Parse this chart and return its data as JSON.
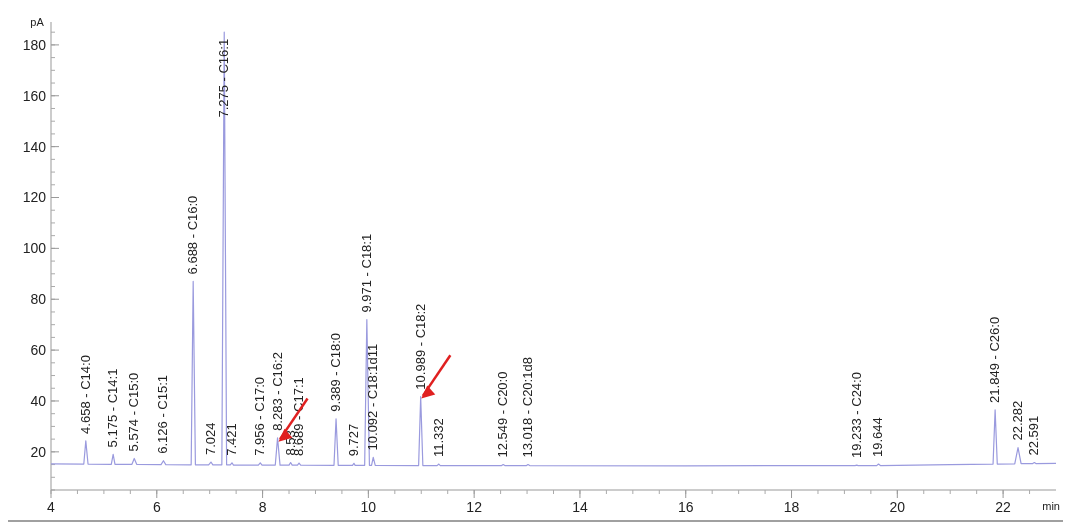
{
  "chart_data": {
    "type": "line",
    "xlabel": "min",
    "ylabel": "pA",
    "xlim": [
      4,
      23
    ],
    "ylim": [
      5,
      189
    ],
    "xticks": [
      4,
      6,
      8,
      10,
      12,
      14,
      16,
      18,
      20,
      22
    ],
    "yticks": [
      20,
      40,
      60,
      80,
      100,
      120,
      140,
      160,
      180
    ],
    "grid": false,
    "marker": "none",
    "line_style": "solid",
    "series": [
      {
        "color": "#9a9ade",
        "x": [
          4.0,
          4.62,
          4.658,
          4.7,
          5.14,
          5.175,
          5.21,
          5.53,
          5.574,
          5.62,
          6.08,
          6.126,
          6.17,
          6.65,
          6.688,
          6.73,
          6.98,
          7.024,
          7.06,
          7.23,
          7.275,
          7.32,
          7.39,
          7.421,
          7.45,
          7.92,
          7.956,
          7.99,
          8.24,
          8.283,
          8.33,
          8.5,
          8.53,
          8.56,
          8.66,
          8.689,
          8.72,
          9.35,
          9.389,
          9.43,
          9.7,
          9.727,
          9.75,
          9.93,
          9.971,
          10.02,
          10.06,
          10.092,
          10.13,
          10.95,
          10.989,
          11.03,
          11.3,
          11.332,
          11.36,
          12.52,
          12.549,
          12.58,
          12.99,
          13.018,
          13.05,
          16.0,
          19.2,
          19.233,
          19.26,
          19.61,
          19.644,
          19.68,
          21.0,
          21.81,
          21.849,
          21.89,
          22.22,
          22.282,
          22.34,
          22.56,
          22.591,
          22.62,
          23.0
        ],
        "values": [
          15.3,
          15.2,
          24.3,
          15.2,
          15.1,
          19,
          15.1,
          15.1,
          17.4,
          15.1,
          15,
          16.5,
          15,
          14.9,
          87,
          14.9,
          14.9,
          16,
          14.9,
          14.9,
          185,
          14.9,
          14.9,
          15.7,
          14.8,
          14.8,
          15.7,
          14.8,
          14.8,
          25.5,
          14.8,
          14.8,
          15.8,
          14.8,
          14.8,
          15.6,
          14.8,
          14.7,
          33,
          14.7,
          14.7,
          15.5,
          14.7,
          14.7,
          72,
          14.7,
          14.7,
          17.8,
          14.7,
          14.6,
          41.7,
          14.6,
          14.6,
          15.2,
          14.6,
          14.6,
          15,
          14.6,
          14.6,
          15,
          14.6,
          14.5,
          14.6,
          14.8,
          14.6,
          14.6,
          15.2,
          14.6,
          15,
          15.2,
          36.5,
          15.2,
          15.3,
          21.7,
          15.4,
          15.4,
          15.8,
          15.4,
          15.5
        ]
      }
    ],
    "annotations": [
      {
        "text": "4.658 - C14:0",
        "x": 4.658,
        "y": 24.3
      },
      {
        "text": "5.175 - C14:1",
        "x": 5.175,
        "y": 19
      },
      {
        "text": "5.574 - C15:0",
        "x": 5.574,
        "y": 17.4
      },
      {
        "text": "6.126 - C15:1",
        "x": 6.126,
        "y": 16.5
      },
      {
        "text": "6.688 - C16:0",
        "x": 6.688,
        "y": 87
      },
      {
        "text": "7.024",
        "x": 7.024,
        "y": 16
      },
      {
        "text": "7.275 - C16:1",
        "x": 7.275,
        "y": 185
      },
      {
        "text": "7.421",
        "x": 7.421,
        "y": 15.7
      },
      {
        "text": "7.956 - C17:0",
        "x": 7.956,
        "y": 15.7
      },
      {
        "text": "8.283 - C16:2",
        "x": 8.283,
        "y": 25.5
      },
      {
        "text": "8.53",
        "x": 8.53,
        "y": 15.8
      },
      {
        "text": "8.689 - C17:1",
        "x": 8.689,
        "y": 15.6
      },
      {
        "text": "9.389 - C18:0",
        "x": 9.389,
        "y": 33
      },
      {
        "text": "9.727",
        "x": 9.727,
        "y": 15.5
      },
      {
        "text": "9.971 - C18:1",
        "x": 9.971,
        "y": 72
      },
      {
        "text": "10.092 - C18:1d11",
        "x": 10.092,
        "y": 17.8
      },
      {
        "text": "10.989 - C18:2",
        "x": 10.989,
        "y": 41.7
      },
      {
        "text": "11.332",
        "x": 11.332,
        "y": 15.2
      },
      {
        "text": "12.549 - C20:0",
        "x": 12.549,
        "y": 15
      },
      {
        "text": "13.018 - C20:1d8",
        "x": 13.018,
        "y": 15
      },
      {
        "text": "19.233 - C24:0",
        "x": 19.233,
        "y": 14.8
      },
      {
        "text": "19.644",
        "x": 19.644,
        "y": 15.2
      },
      {
        "text": "21.849 - C26:0",
        "x": 21.849,
        "y": 36.5
      },
      {
        "text": "22.282",
        "x": 22.282,
        "y": 21.7
      },
      {
        "text": "22.591",
        "x": 22.591,
        "y": 15.8
      }
    ]
  }
}
